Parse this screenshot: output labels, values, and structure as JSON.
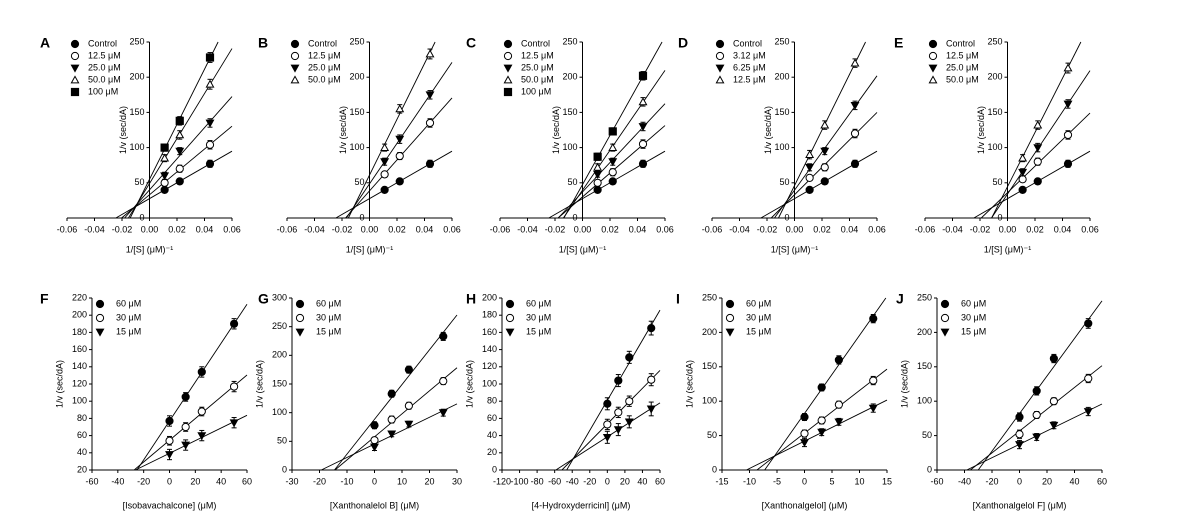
{
  "chart_data": [
    {
      "type": "scatter",
      "title": "A",
      "x_label": "1/[S] (μM)⁻¹",
      "y_label": "1/v (sec/dA)",
      "yaxis": "zero",
      "fit": true,
      "color": "#000000",
      "x": [
        0.011,
        0.022,
        0.044
      ],
      "xlim": [
        -0.06,
        0.06
      ],
      "xticks": [
        -0.06,
        -0.04,
        -0.02,
        {
          "value": 0,
          "label": "0.00"
        },
        0.02,
        0.04,
        0.06
      ],
      "ylim": [
        0,
        250
      ],
      "yticks": [
        0,
        50,
        100,
        150,
        200,
        250
      ],
      "series": [
        {
          "name": "Control",
          "marker": "circle-filled",
          "values": [
            40,
            52,
            77
          ],
          "errors": [
            4,
            4,
            5
          ]
        },
        {
          "name": "12.5 μM",
          "marker": "circle-open",
          "values": [
            50,
            70,
            104
          ],
          "errors": [
            4,
            5,
            6
          ]
        },
        {
          "name": "25.0 μM",
          "marker": "triangle-down-filled",
          "values": [
            60,
            95,
            135
          ],
          "errors": [
            5,
            5,
            6
          ]
        },
        {
          "name": "50.0 μM",
          "marker": "triangle-up-open",
          "values": [
            85,
            118,
            190
          ],
          "errors": [
            5,
            6,
            7
          ]
        },
        {
          "name": "100 μM",
          "marker": "square-filled",
          "values": [
            100,
            138,
            228
          ],
          "errors": [
            5,
            6,
            7
          ]
        }
      ]
    },
    {
      "type": "scatter",
      "title": "B",
      "x_label": "1/[S] (μM)⁻¹",
      "y_label": "1/v (sec/dA)",
      "yaxis": "zero",
      "fit": true,
      "color": "#000000",
      "x": [
        0.011,
        0.022,
        0.044
      ],
      "xlim": [
        -0.06,
        0.06
      ],
      "xticks": [
        -0.06,
        -0.04,
        -0.02,
        {
          "value": 0,
          "label": "0.00"
        },
        0.02,
        0.04,
        0.06
      ],
      "ylim": [
        0,
        250
      ],
      "yticks": [
        0,
        50,
        100,
        150,
        200,
        250
      ],
      "series": [
        {
          "name": "Control",
          "marker": "circle-filled",
          "values": [
            40,
            52,
            77
          ],
          "errors": [
            4,
            4,
            5
          ]
        },
        {
          "name": "12.5 μM",
          "marker": "circle-open",
          "values": [
            62,
            88,
            135
          ],
          "errors": [
            4,
            5,
            6
          ]
        },
        {
          "name": "25.0 μM",
          "marker": "triangle-down-filled",
          "values": [
            80,
            112,
            175
          ],
          "errors": [
            5,
            6,
            6
          ]
        },
        {
          "name": "50.0 μM",
          "marker": "triangle-up-open",
          "values": [
            100,
            155,
            233
          ],
          "errors": [
            5,
            6,
            7
          ]
        }
      ]
    },
    {
      "type": "scatter",
      "title": "C",
      "x_label": "1/[S] (μM)⁻¹",
      "y_label": "1/v (sec/dA)",
      "yaxis": "zero",
      "fit": true,
      "color": "#000000",
      "x": [
        0.011,
        0.022,
        0.044
      ],
      "xlim": [
        -0.06,
        0.06
      ],
      "xticks": [
        -0.06,
        -0.04,
        -0.02,
        {
          "value": 0,
          "label": "0.00"
        },
        0.02,
        0.04,
        0.06
      ],
      "ylim": [
        0,
        250
      ],
      "yticks": [
        0,
        50,
        100,
        150,
        200,
        250
      ],
      "series": [
        {
          "name": "Control",
          "marker": "circle-filled",
          "values": [
            40,
            52,
            77
          ],
          "errors": [
            4,
            4,
            5
          ]
        },
        {
          "name": "12.5 μM",
          "marker": "circle-open",
          "values": [
            50,
            65,
            105
          ],
          "errors": [
            4,
            5,
            6
          ]
        },
        {
          "name": "25.0 μM",
          "marker": "triangle-down-filled",
          "values": [
            62,
            80,
            130
          ],
          "errors": [
            4,
            5,
            6
          ]
        },
        {
          "name": "50.0 μM",
          "marker": "triangle-up-open",
          "values": [
            72,
            100,
            165
          ],
          "errors": [
            5,
            5,
            6
          ]
        },
        {
          "name": "100 μM",
          "marker": "square-filled",
          "values": [
            87,
            123,
            202
          ],
          "errors": [
            5,
            5,
            6
          ]
        }
      ]
    },
    {
      "type": "scatter",
      "title": "D",
      "x_label": "1/[S] (μM)⁻¹",
      "y_label": "1/v (sec/dA)",
      "yaxis": "zero",
      "fit": true,
      "color": "#000000",
      "x": [
        0.011,
        0.022,
        0.044
      ],
      "xlim": [
        -0.06,
        0.06
      ],
      "xticks": [
        -0.06,
        -0.04,
        -0.02,
        {
          "value": 0,
          "label": "0.00"
        },
        0.02,
        0.04,
        0.06
      ],
      "ylim": [
        0,
        250
      ],
      "yticks": [
        0,
        50,
        100,
        150,
        200,
        250
      ],
      "series": [
        {
          "name": "Control",
          "marker": "circle-filled",
          "values": [
            40,
            52,
            77
          ],
          "errors": [
            4,
            4,
            5
          ]
        },
        {
          "name": "3.12 μM",
          "marker": "circle-open",
          "values": [
            57,
            72,
            120
          ],
          "errors": [
            4,
            5,
            6
          ]
        },
        {
          "name": "6.25 μM",
          "marker": "triangle-down-filled",
          "values": [
            72,
            95,
            160
          ],
          "errors": [
            5,
            5,
            6
          ]
        },
        {
          "name": "12.5 μM",
          "marker": "triangle-up-open",
          "values": [
            90,
            132,
            220
          ],
          "errors": [
            6,
            6,
            6
          ]
        }
      ]
    },
    {
      "type": "scatter",
      "title": "E",
      "x_label": "1/[S] (μM)⁻¹",
      "y_label": "1/v (sec/dA)",
      "yaxis": "zero",
      "fit": true,
      "color": "#000000",
      "x": [
        0.011,
        0.022,
        0.044
      ],
      "xlim": [
        -0.06,
        0.06
      ],
      "xticks": [
        -0.06,
        -0.04,
        -0.02,
        {
          "value": 0,
          "label": "0.00"
        },
        0.02,
        0.04,
        0.06
      ],
      "ylim": [
        0,
        250
      ],
      "yticks": [
        0,
        50,
        100,
        150,
        200,
        250
      ],
      "series": [
        {
          "name": "Control",
          "marker": "circle-filled",
          "values": [
            40,
            52,
            77
          ],
          "errors": [
            4,
            4,
            5
          ]
        },
        {
          "name": "12.5 μM",
          "marker": "circle-open",
          "values": [
            55,
            80,
            118
          ],
          "errors": [
            4,
            5,
            6
          ]
        },
        {
          "name": "25.0 μM",
          "marker": "triangle-down-filled",
          "values": [
            65,
            100,
            162
          ],
          "errors": [
            5,
            6,
            6
          ]
        },
        {
          "name": "50.0 μM",
          "marker": "triangle-up-open",
          "values": [
            85,
            132,
            213
          ],
          "errors": [
            5,
            6,
            7
          ]
        }
      ]
    },
    {
      "type": "scatter",
      "title": "F",
      "x_label": "[Isobavachalcone] (μM)",
      "y_label": "1/v (sec/dA)",
      "yaxis": "left",
      "fit": true,
      "color": "#000000",
      "x": [
        0,
        12.5,
        25,
        50
      ],
      "xlim": [
        -60,
        60
      ],
      "xticks": [
        -60,
        -40,
        -20,
        0,
        20,
        40,
        60
      ],
      "ylim": [
        20,
        220
      ],
      "yticks": [
        20,
        40,
        60,
        80,
        100,
        120,
        140,
        160,
        180,
        200,
        220
      ],
      "series": [
        {
          "name": "60 μM",
          "marker": "circle-filled",
          "values": [
            77,
            105,
            134,
            190
          ],
          "errors": [
            6,
            5,
            6,
            6
          ]
        },
        {
          "name": "30 μM",
          "marker": "circle-open",
          "values": [
            54,
            70,
            88,
            117
          ],
          "errors": [
            5,
            5,
            5,
            6
          ]
        },
        {
          "name": "15 μM",
          "marker": "triangle-down-filled",
          "values": [
            38,
            49,
            60,
            75
          ],
          "errors": [
            6,
            6,
            6,
            6
          ]
        }
      ]
    },
    {
      "type": "scatter",
      "title": "G",
      "x_label": "[Xanthonalelol B] (μM)",
      "y_label": "1/v (sec/dA)",
      "yaxis": "left",
      "fit": true,
      "color": "#000000",
      "x": [
        0,
        6.25,
        12.5,
        25
      ],
      "xlim": [
        -30,
        30
      ],
      "xticks": [
        -30,
        -20,
        -10,
        0,
        10,
        20,
        30
      ],
      "ylim": [
        0,
        300
      ],
      "yticks": [
        0,
        50,
        100,
        150,
        200,
        250,
        300
      ],
      "series": [
        {
          "name": "60 μM",
          "marker": "circle-filled",
          "values": [
            78,
            133,
            175,
            233
          ],
          "errors": [
            6,
            6,
            6,
            7
          ]
        },
        {
          "name": "30 μM",
          "marker": "circle-open",
          "values": [
            52,
            88,
            112,
            155
          ],
          "errors": [
            5,
            6,
            6,
            6
          ]
        },
        {
          "name": "15 μM",
          "marker": "triangle-down-filled",
          "values": [
            40,
            63,
            80,
            100
          ],
          "errors": [
            6,
            5,
            5,
            6
          ]
        }
      ]
    },
    {
      "type": "scatter",
      "title": "H",
      "x_label": "[4-Hydroxyderricinl] (μM)",
      "y_label": "1/v (sec/dA)",
      "yaxis": "left",
      "fit": true,
      "color": "#000000",
      "x": [
        0,
        12.5,
        25,
        50
      ],
      "xlim": [
        -120,
        60
      ],
      "xticks": [
        -120,
        -100,
        -80,
        -60,
        -40,
        -20,
        0,
        20,
        40,
        60
      ],
      "ylim": [
        0,
        200
      ],
      "yticks": [
        0,
        20,
        40,
        60,
        80,
        100,
        120,
        140,
        160,
        180,
        200
      ],
      "series": [
        {
          "name": "60 μM",
          "marker": "circle-filled",
          "values": [
            77,
            104,
            131,
            165
          ],
          "errors": [
            7,
            7,
            7,
            8
          ]
        },
        {
          "name": "30 μM",
          "marker": "circle-open",
          "values": [
            53,
            67,
            80,
            105
          ],
          "errors": [
            6,
            6,
            6,
            7
          ]
        },
        {
          "name": "15 μM",
          "marker": "triangle-down-filled",
          "values": [
            38,
            47,
            56,
            71
          ],
          "errors": [
            7,
            7,
            7,
            8
          ]
        }
      ]
    },
    {
      "type": "scatter",
      "title": "I",
      "x_label": "[Xanthonalgelol] (μM)",
      "y_label": "1/v (sec/dA)",
      "yaxis": "left",
      "fit": true,
      "color": "#000000",
      "x": [
        0,
        3.125,
        6.25,
        12.5
      ],
      "xlim": [
        -15,
        15
      ],
      "xticks": [
        -15,
        -10,
        -5,
        0,
        5,
        10,
        15
      ],
      "ylim": [
        0,
        250
      ],
      "yticks": [
        0,
        50,
        100,
        150,
        200,
        250
      ],
      "series": [
        {
          "name": "60 μM",
          "marker": "circle-filled",
          "values": [
            77,
            120,
            160,
            220
          ],
          "errors": [
            5,
            5,
            6,
            6
          ]
        },
        {
          "name": "30 μM",
          "marker": "circle-open",
          "values": [
            53,
            72,
            95,
            130
          ],
          "errors": [
            5,
            5,
            5,
            6
          ]
        },
        {
          "name": "15 μM",
          "marker": "triangle-down-filled",
          "values": [
            40,
            55,
            70,
            90
          ],
          "errors": [
            6,
            5,
            5,
            6
          ]
        }
      ]
    },
    {
      "type": "scatter",
      "title": "J",
      "x_label": "[Xanthonalgelol F] (μM)",
      "y_label": "1/v (sec/dA)",
      "yaxis": "left",
      "fit": true,
      "color": "#000000",
      "x": [
        0,
        12.5,
        25,
        50
      ],
      "xlim": [
        -60,
        60
      ],
      "xticks": [
        -60,
        -40,
        -20,
        0,
        20,
        40,
        60
      ],
      "ylim": [
        0,
        250
      ],
      "yticks": [
        0,
        50,
        100,
        150,
        200,
        250
      ],
      "series": [
        {
          "name": "60 μM",
          "marker": "circle-filled",
          "values": [
            77,
            115,
            162,
            213
          ],
          "errors": [
            6,
            6,
            6,
            7
          ]
        },
        {
          "name": "30 μM",
          "marker": "circle-open",
          "values": [
            52,
            80,
            100,
            133
          ],
          "errors": [
            6,
            5,
            5,
            6
          ]
        },
        {
          "name": "15 μM",
          "marker": "triangle-down-filled",
          "values": [
            37,
            48,
            65,
            85
          ],
          "errors": [
            6,
            5,
            5,
            6
          ]
        }
      ]
    }
  ]
}
